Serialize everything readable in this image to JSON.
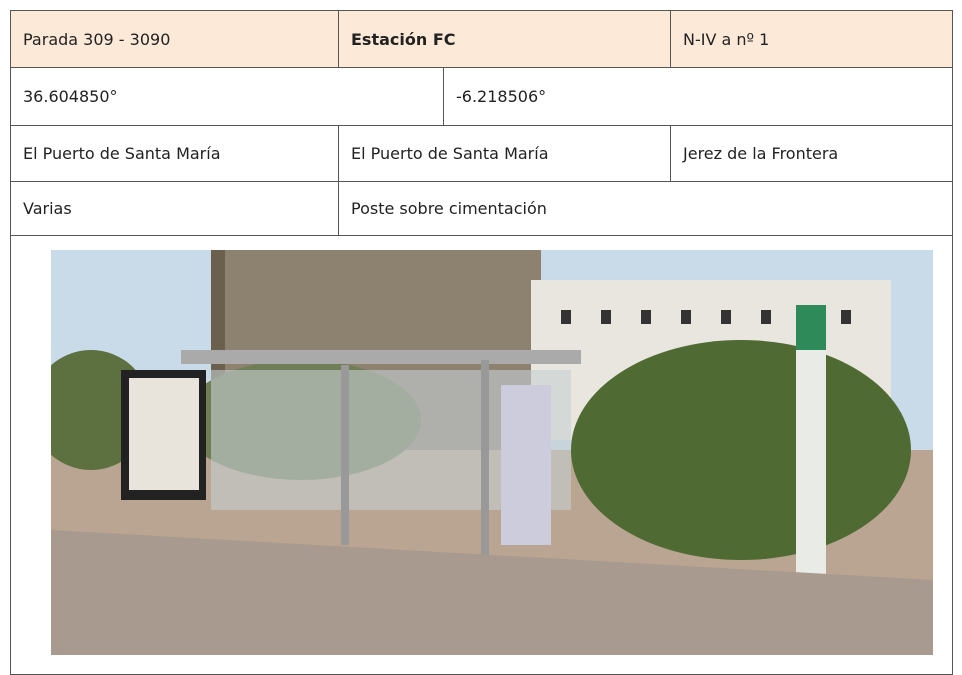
{
  "table": {
    "rows": [
      [
        "Parada 309 - 3090",
        "Estación FC",
        "N-IV a nº 1"
      ],
      [
        "36.604850°",
        "-6.218506°"
      ],
      [
        "El Puerto de Santa María",
        "El Puerto de Santa María",
        "Jerez de la Frontera"
      ],
      [
        "Varias",
        "Poste sobre cimentación"
      ]
    ]
  }
}
